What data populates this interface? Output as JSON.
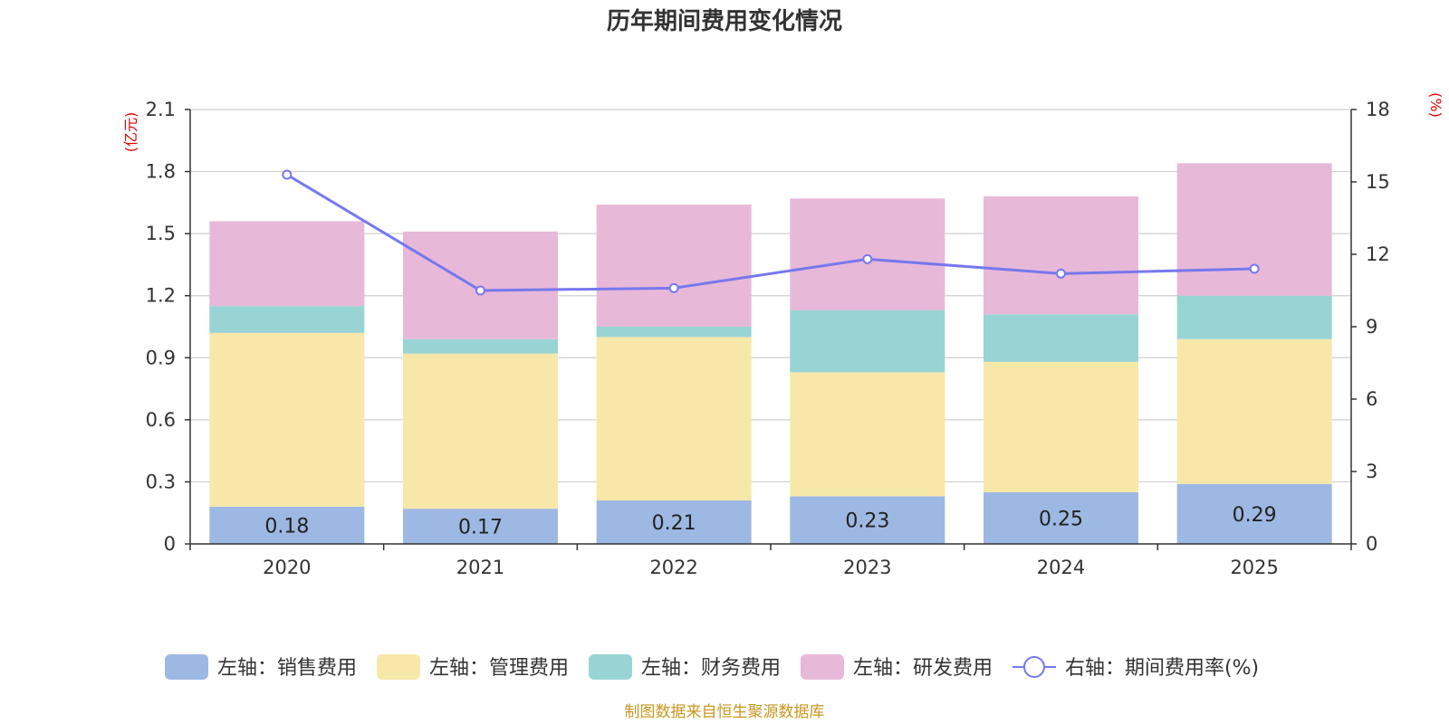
{
  "chart_data": {
    "type": "bar",
    "stacked": true,
    "title": "历年期间费用变化情况",
    "categories": [
      "2020",
      "2021",
      "2022",
      "2023",
      "2024",
      "2025"
    ],
    "left_axis": {
      "unit": "(亿元)",
      "ylim": [
        0,
        2.1
      ],
      "ticks": [
        "0",
        "0.3",
        "0.6",
        "0.9",
        "1.2",
        "1.5",
        "1.8",
        "2.1"
      ]
    },
    "right_axis": {
      "unit": "(%)",
      "ylim": [
        0,
        18
      ],
      "ticks": [
        "0",
        "3",
        "6",
        "9",
        "12",
        "15",
        "18"
      ]
    },
    "series": [
      {
        "name": "左轴：销售费用",
        "color": "#9db8e2",
        "values": [
          0.18,
          0.17,
          0.21,
          0.23,
          0.25,
          0.29
        ],
        "labels": [
          "0.18",
          "0.17",
          "0.21",
          "0.23",
          "0.25",
          "0.29"
        ]
      },
      {
        "name": "左轴：管理费用",
        "color": "#f7e7a9",
        "values": [
          0.84,
          0.75,
          0.79,
          0.6,
          0.63,
          0.7
        ]
      },
      {
        "name": "左轴：财务费用",
        "color": "#99d4d4",
        "values": [
          0.13,
          0.07,
          0.05,
          0.3,
          0.23,
          0.21
        ]
      },
      {
        "name": "左轴：研发费用",
        "color": "#e8b8d9",
        "values": [
          0.41,
          0.52,
          0.59,
          0.54,
          0.57,
          0.64
        ]
      }
    ],
    "line": {
      "name": "右轴：期间费用率(%)",
      "color": "#7678ed",
      "values": [
        15.3,
        10.5,
        10.6,
        11.8,
        11.2,
        11.4
      ]
    },
    "grid": true,
    "legend_position": "bottom",
    "source": "制图数据来自恒生聚源数据库"
  }
}
